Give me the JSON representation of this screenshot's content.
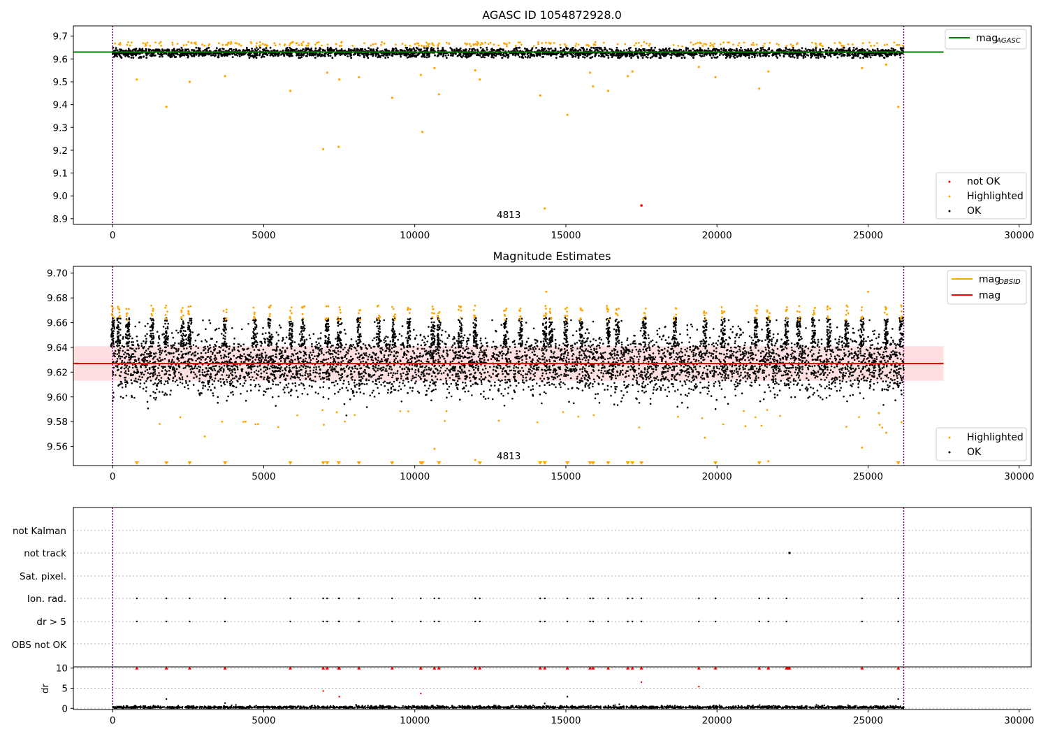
{
  "figure": {
    "title": "AGASC ID 1054872928.0",
    "obsid_label": "4813"
  },
  "chart_data": [
    {
      "type": "scatter",
      "title": "AGASC ID 1054872928.0",
      "xlabel": "",
      "ylabel": "",
      "xlim": [
        -1300,
        30400
      ],
      "ylim": [
        8.875,
        9.745
      ],
      "xticks": [
        0,
        5000,
        10000,
        15000,
        20000,
        25000,
        30000
      ],
      "xtick_labels": [
        "0",
        "5000",
        "10000",
        "15000",
        "20000",
        "25000",
        "30000"
      ],
      "yticks": [
        8.9,
        9.0,
        9.1,
        9.2,
        9.3,
        9.4,
        9.5,
        9.6,
        9.7
      ],
      "ytick_labels": [
        "8.9",
        "9.0",
        "9.1",
        "9.2",
        "9.3",
        "9.4",
        "9.5",
        "9.6",
        "9.7"
      ],
      "vlines": [
        0,
        26180
      ],
      "annotation": {
        "text": "4813",
        "x": 13120,
        "y": 8.9
      },
      "reference_line": {
        "name": "mag_AGASC",
        "legend_main": "mag",
        "legend_sub": "AGASC",
        "y": 9.63,
        "x": [
          -1300,
          27500
        ],
        "color": "#008000"
      },
      "legend_position": "top-right / lower-right",
      "legend": [
        {
          "label": "not OK",
          "color": "#ff0000"
        },
        {
          "label": "Highlighted",
          "color": "#ffa500"
        },
        {
          "label": "OK",
          "color": "#000000"
        }
      ],
      "series": [
        {
          "name": "OK",
          "color": "#000000",
          "x_range": [
            0,
            26180
          ],
          "y_center": 9.627,
          "y_spread": 0.022
        },
        {
          "name": "Highlighted",
          "color": "#ffa500",
          "points": [
            [
              800,
              9.51
            ],
            [
              1780,
              9.39
            ],
            [
              2550,
              9.5
            ],
            [
              3720,
              9.525
            ],
            [
              5880,
              9.46
            ],
            [
              6970,
              9.205
            ],
            [
              7480,
              9.215
            ],
            [
              7100,
              9.54
            ],
            [
              7500,
              9.51
            ],
            [
              8150,
              9.52
            ],
            [
              9250,
              9.43
            ],
            [
              10200,
              9.53
            ],
            [
              10250,
              9.28
            ],
            [
              10650,
              9.56
            ],
            [
              10800,
              9.445
            ],
            [
              12000,
              9.55
            ],
            [
              12150,
              9.51
            ],
            [
              14150,
              9.44
            ],
            [
              14300,
              8.945
            ],
            [
              15050,
              9.355
            ],
            [
              15800,
              9.54
            ],
            [
              15900,
              9.48
            ],
            [
              16400,
              9.46
            ],
            [
              17050,
              9.525
            ],
            [
              17200,
              9.545
            ],
            [
              19400,
              9.565
            ],
            [
              19950,
              9.52
            ],
            [
              21400,
              9.47
            ],
            [
              21700,
              9.545
            ],
            [
              24800,
              9.56
            ],
            [
              25600,
              9.575
            ],
            [
              26000,
              9.39
            ]
          ]
        },
        {
          "name": "not OK",
          "color": "#ff0000",
          "points": [
            [
              17500,
              8.958
            ]
          ]
        }
      ]
    },
    {
      "type": "scatter",
      "title": "Magnitude Estimates",
      "xlabel": "",
      "ylabel": "",
      "xlim": [
        -1300,
        30400
      ],
      "ylim": [
        9.5445,
        9.7055
      ],
      "xticks": [
        0,
        5000,
        10000,
        15000,
        20000,
        25000,
        30000
      ],
      "xtick_labels": [
        "0",
        "5000",
        "10000",
        "15000",
        "20000",
        "25000",
        "30000"
      ],
      "yticks": [
        9.56,
        9.58,
        9.6,
        9.62,
        9.64,
        9.66,
        9.68,
        9.7
      ],
      "ytick_labels": [
        "9.56",
        "9.58",
        "9.60",
        "9.62",
        "9.64",
        "9.66",
        "9.68",
        "9.70"
      ],
      "vlines": [
        0,
        26180
      ],
      "annotation": {
        "text": "4813",
        "x": 13120,
        "y": 9.548
      },
      "reference_lines": [
        {
          "name": "mag_OBSID",
          "legend_main": "mag",
          "legend_sub": "OBSID",
          "color": "#ffa500"
        },
        {
          "name": "mag",
          "legend_main": "mag",
          "y": 9.627,
          "x": [
            -1300,
            27500
          ],
          "band": [
            9.613,
            9.641
          ],
          "color": "#ff0000"
        }
      ],
      "legend_position": "top-right / lower-right",
      "legend": [
        {
          "label": "Highlighted",
          "color": "#ffa500"
        },
        {
          "label": "OK",
          "color": "#000000"
        }
      ],
      "series": [
        {
          "name": "OK",
          "color": "#000000",
          "x_range": [
            0,
            26180
          ],
          "y_center": 9.627,
          "y_spread": 0.012
        },
        {
          "name": "Highlighted",
          "color": "#ffa500",
          "spike_x": [
            0,
            200,
            500,
            1300,
            1780,
            2300,
            2550,
            3720,
            4700,
            5200,
            5900,
            6300,
            7100,
            7500,
            8150,
            8800,
            9300,
            9800,
            10600,
            10800,
            11500,
            12000,
            13000,
            13500,
            14300,
            14500,
            15000,
            15500,
            16400,
            16700,
            17600,
            18600,
            19600,
            20200,
            21300,
            21700,
            22300,
            22700,
            23200,
            23700,
            24300,
            24800,
            25600,
            26100
          ]
        },
        {
          "name": "off-scale low",
          "marker": "triangle-down",
          "color": "#ffa500",
          "x": [
            800,
            1780,
            2550,
            3720,
            5880,
            6970,
            7480,
            7100,
            8150,
            9250,
            10200,
            10250,
            10800,
            12150,
            14150,
            14300,
            15050,
            15800,
            15900,
            16400,
            17050,
            17200,
            17500,
            19950,
            21400,
            26000
          ]
        }
      ]
    },
    {
      "type": "scatter",
      "title": "",
      "xlabel": "",
      "ylabel": "",
      "category_axis": [
        "not Kalman",
        "not track",
        "Sat. pixel.",
        "Ion. rad.",
        "dr > 5",
        "OBS not OK"
      ],
      "flags": {
        "not track": [
          22400
        ],
        "Ion. rad.": [
          800,
          1780,
          2550,
          3720,
          5880,
          6970,
          7100,
          7480,
          7500,
          8150,
          9250,
          10200,
          10650,
          10800,
          12000,
          12150,
          14150,
          14300,
          15050,
          15800,
          15900,
          16400,
          17050,
          17200,
          17500,
          19400,
          19950,
          21400,
          21700,
          22300,
          24800,
          26000
        ],
        "dr > 5": [
          800,
          1780,
          2550,
          3720,
          5880,
          6970,
          7100,
          7480,
          7500,
          8150,
          9250,
          10200,
          10650,
          10800,
          12000,
          12150,
          14150,
          14300,
          15050,
          15800,
          15900,
          16400,
          17050,
          17200,
          17500,
          19400,
          19950,
          21400,
          21700,
          22300,
          24800,
          26000
        ]
      }
    },
    {
      "type": "scatter",
      "title": "",
      "xlabel": "",
      "ylabel": "dr",
      "xlim": [
        -1300,
        30400
      ],
      "ylim": [
        -0.3,
        10.3
      ],
      "xticks": [
        0,
        5000,
        10000,
        15000,
        20000,
        25000,
        30000
      ],
      "xtick_labels": [
        "0",
        "5000",
        "10000",
        "15000",
        "20000",
        "25000",
        "30000"
      ],
      "yticks": [
        0,
        5,
        10
      ],
      "ytick_labels": [
        "0",
        "5",
        "10"
      ],
      "vlines": [
        0,
        26180
      ],
      "series": [
        {
          "name": "dr",
          "color": "#000000",
          "x_range": [
            0,
            26180
          ],
          "y_center": 0.3,
          "y_spread": 0.25
        },
        {
          "name": "dr > 10 (clipped)",
          "marker": "triangle-up",
          "color": "#ff0000",
          "x": [
            800,
            1780,
            2550,
            3720,
            5880,
            6970,
            7100,
            7480,
            7500,
            8150,
            9250,
            10200,
            10650,
            10800,
            12000,
            12150,
            14150,
            14300,
            15050,
            15800,
            15900,
            16400,
            17050,
            17200,
            17500,
            19400,
            19950,
            21400,
            21700,
            22300,
            22350,
            22400,
            24800,
            26000
          ]
        },
        {
          "name": "dr outliers",
          "color": "#ff0000",
          "points": [
            [
              6970,
              4.3
            ],
            [
              7500,
              2.9
            ],
            [
              10200,
              3.7
            ],
            [
              17500,
              6.5
            ],
            [
              19400,
              5.4
            ]
          ]
        },
        {
          "name": "dr moderate",
          "color": "#000000",
          "points": [
            [
              1780,
              2.3
            ],
            [
              3720,
              1.3
            ],
            [
              14300,
              1.2
            ],
            [
              15050,
              2.9
            ],
            [
              26000,
              2.3
            ]
          ]
        }
      ]
    }
  ]
}
